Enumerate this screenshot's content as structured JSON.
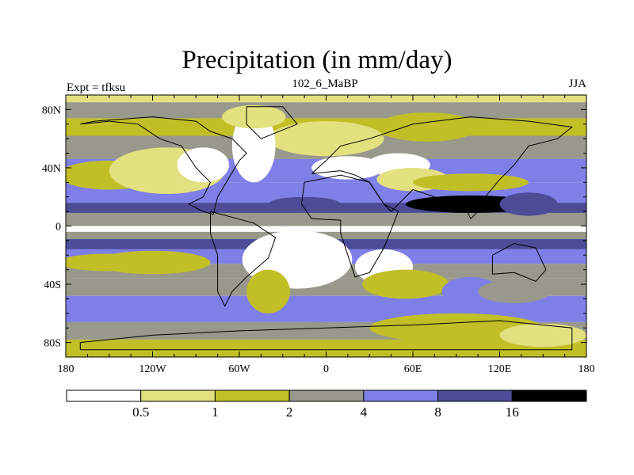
{
  "chart_data": {
    "type": "heatmap",
    "title": "Precipitation (in mm/day)",
    "left_string": "Expt = tfksu",
    "center_string": "102_6_MaBP",
    "right_string": "JJA",
    "x_ticks": [
      {
        "value": -180,
        "label": "180"
      },
      {
        "value": -120,
        "label": "120W"
      },
      {
        "value": -60,
        "label": "60W"
      },
      {
        "value": 0,
        "label": "0"
      },
      {
        "value": 60,
        "label": "60E"
      },
      {
        "value": 120,
        "label": "120E"
      },
      {
        "value": 180,
        "label": "180"
      }
    ],
    "y_ticks": [
      {
        "value": 80,
        "label": "80N"
      },
      {
        "value": 40,
        "label": "40N"
      },
      {
        "value": 0,
        "label": "0"
      },
      {
        "value": -40,
        "label": "40S"
      },
      {
        "value": -80,
        "label": "80S"
      }
    ],
    "xlim": [
      -180,
      180
    ],
    "ylim": [
      -90,
      90
    ],
    "colorbar": {
      "levels": [
        "0.5",
        "1",
        "2",
        "4",
        "8",
        "16"
      ],
      "colors": [
        "#ffffff",
        "#e3e07f",
        "#c1bf26",
        "#98988c",
        "#7f7fe8",
        "#4c4c97",
        "#000000"
      ]
    },
    "bands": [
      {
        "lat": 90,
        "lon": -180,
        "width": 360,
        "lat2": 85,
        "level": 1
      },
      {
        "lat": 85,
        "lon": -180,
        "width": 360,
        "lat2": 74,
        "level": 3
      },
      {
        "lat": 74,
        "lon": -180,
        "width": 360,
        "lat2": 62,
        "level": 2
      },
      {
        "lat": 62,
        "lon": -180,
        "width": 360,
        "lat2": 46,
        "level": 3
      },
      {
        "lat": 46,
        "lon": -180,
        "width": 360,
        "lat2": 30,
        "level": 4
      },
      {
        "lat": 30,
        "lon": -180,
        "width": 360,
        "lat2": 16,
        "level": 4
      },
      {
        "lat": 16,
        "lon": -180,
        "width": 360,
        "lat2": 9,
        "level": 5
      },
      {
        "lat": 9,
        "lon": -180,
        "width": 360,
        "lat2": 0,
        "level": 3
      },
      {
        "lat": 0,
        "lon": -180,
        "width": 360,
        "lat2": -4,
        "level": 0
      },
      {
        "lat": -4,
        "lon": -180,
        "width": 360,
        "lat2": -9,
        "level": 3
      },
      {
        "lat": -9,
        "lon": -180,
        "width": 360,
        "lat2": -16,
        "level": 5
      },
      {
        "lat": -16,
        "lon": -180,
        "width": 360,
        "lat2": -26,
        "level": 4
      },
      {
        "lat": -26,
        "lon": -180,
        "width": 360,
        "lat2": -36,
        "level": 3
      },
      {
        "lat": -36,
        "lon": -180,
        "width": 360,
        "lat2": -48,
        "level": 3
      },
      {
        "lat": -48,
        "lon": -180,
        "width": 360,
        "lat2": -66,
        "level": 4
      },
      {
        "lat": -66,
        "lon": -180,
        "width": 360,
        "lat2": -78,
        "level": 3
      },
      {
        "lat": -78,
        "lon": -180,
        "width": 360,
        "lat2": -90,
        "level": 2
      }
    ],
    "patches": [
      {
        "cx": 0,
        "cy": 60,
        "rx": 40,
        "ry": 12,
        "level": 1
      },
      {
        "cx": 70,
        "cy": 68,
        "rx": 35,
        "ry": 10,
        "level": 2
      },
      {
        "cx": -150,
        "cy": 35,
        "rx": 35,
        "ry": 10,
        "level": 2
      },
      {
        "cx": -110,
        "cy": 38,
        "rx": 40,
        "ry": 16,
        "level": 1
      },
      {
        "cx": -85,
        "cy": 42,
        "rx": 18,
        "ry": 12,
        "level": 0
      },
      {
        "cx": -50,
        "cy": 55,
        "rx": 15,
        "ry": 25,
        "level": 0
      },
      {
        "cx": -50,
        "cy": 75,
        "rx": 22,
        "ry": 8,
        "level": 1
      },
      {
        "cx": 15,
        "cy": 40,
        "rx": 25,
        "ry": 8,
        "level": 0
      },
      {
        "cx": 50,
        "cy": 42,
        "rx": 22,
        "ry": 8,
        "level": 0
      },
      {
        "cx": 60,
        "cy": 32,
        "rx": 25,
        "ry": 8,
        "level": 1
      },
      {
        "cx": 100,
        "cy": 30,
        "rx": 40,
        "ry": 6,
        "level": 2
      },
      {
        "cx": 100,
        "cy": 15,
        "rx": 45,
        "ry": 6,
        "level": 6
      },
      {
        "cx": 140,
        "cy": 15,
        "rx": 20,
        "ry": 8,
        "level": 5
      },
      {
        "cx": -15,
        "cy": 15,
        "rx": 25,
        "ry": 5,
        "level": 5
      },
      {
        "cx": -150,
        "cy": -25,
        "rx": 35,
        "ry": 6,
        "level": 2
      },
      {
        "cx": -20,
        "cy": -23,
        "rx": 38,
        "ry": 20,
        "level": 0
      },
      {
        "cx": 40,
        "cy": -28,
        "rx": 20,
        "ry": 12,
        "level": 0
      },
      {
        "cx": -40,
        "cy": -45,
        "rx": 15,
        "ry": 15,
        "level": 2
      },
      {
        "cx": 55,
        "cy": -40,
        "rx": 30,
        "ry": 10,
        "level": 2
      },
      {
        "cx": 100,
        "cy": -45,
        "rx": 20,
        "ry": 10,
        "level": 4
      },
      {
        "cx": 130,
        "cy": -45,
        "rx": 25,
        "ry": 8,
        "level": 3
      },
      {
        "cx": 90,
        "cy": -70,
        "rx": 60,
        "ry": 10,
        "level": 2
      },
      {
        "cx": -120,
        "cy": -25,
        "rx": 40,
        "ry": 8,
        "level": 2
      },
      {
        "cx": 150,
        "cy": -75,
        "rx": 30,
        "ry": 8,
        "level": 1
      }
    ],
    "coastline": [
      [
        [
          -170,
          70
        ],
        [
          -150,
          72
        ],
        [
          -130,
          70
        ],
        [
          -115,
          60
        ],
        [
          -100,
          55
        ],
        [
          -90,
          40
        ],
        [
          -80,
          30
        ],
        [
          -85,
          20
        ],
        [
          -95,
          15
        ],
        [
          -85,
          10
        ],
        [
          -78,
          8
        ],
        [
          -75,
          20
        ],
        [
          -60,
          45
        ],
        [
          -55,
          50
        ],
        [
          -65,
          60
        ],
        [
          -80,
          65
        ],
        [
          -90,
          72
        ],
        [
          -120,
          75
        ],
        [
          -160,
          72
        ],
        [
          -170,
          70
        ]
      ],
      [
        [
          -55,
          82
        ],
        [
          -30,
          82
        ],
        [
          -20,
          70
        ],
        [
          -45,
          60
        ],
        [
          -55,
          70
        ],
        [
          -55,
          82
        ]
      ],
      [
        [
          -80,
          10
        ],
        [
          -50,
          2
        ],
        [
          -35,
          -8
        ],
        [
          -40,
          -22
        ],
        [
          -55,
          -35
        ],
        [
          -65,
          -45
        ],
        [
          -70,
          -55
        ],
        [
          -75,
          -45
        ],
        [
          -75,
          -20
        ],
        [
          -80,
          -5
        ],
        [
          -80,
          10
        ]
      ],
      [
        [
          -10,
          36
        ],
        [
          0,
          45
        ],
        [
          10,
          55
        ],
        [
          30,
          60
        ],
        [
          60,
          70
        ],
        [
          100,
          75
        ],
        [
          140,
          72
        ],
        [
          170,
          68
        ],
        [
          160,
          60
        ],
        [
          140,
          55
        ],
        [
          130,
          42
        ],
        [
          120,
          32
        ],
        [
          110,
          20
        ],
        [
          105,
          10
        ],
        [
          100,
          5
        ],
        [
          95,
          15
        ],
        [
          80,
          10
        ],
        [
          75,
          20
        ],
        [
          60,
          25
        ],
        [
          50,
          15
        ],
        [
          45,
          10
        ],
        [
          40,
          15
        ],
        [
          30,
          30
        ],
        [
          20,
          35
        ],
        [
          10,
          38
        ],
        [
          -10,
          36
        ]
      ],
      [
        [
          -15,
          30
        ],
        [
          -17,
          15
        ],
        [
          -10,
          5
        ],
        [
          10,
          4
        ],
        [
          10,
          -5
        ],
        [
          15,
          -20
        ],
        [
          20,
          -35
        ],
        [
          30,
          -32
        ],
        [
          40,
          -15
        ],
        [
          50,
          10
        ],
        [
          40,
          15
        ],
        [
          30,
          30
        ],
        [
          10,
          35
        ],
        [
          -15,
          30
        ]
      ],
      [
        [
          115,
          -20
        ],
        [
          130,
          -12
        ],
        [
          145,
          -15
        ],
        [
          152,
          -30
        ],
        [
          145,
          -38
        ],
        [
          130,
          -32
        ],
        [
          115,
          -33
        ],
        [
          115,
          -20
        ]
      ],
      [
        [
          -170,
          -85
        ],
        [
          170,
          -85
        ],
        [
          170,
          -70
        ],
        [
          120,
          -65
        ],
        [
          60,
          -68
        ],
        [
          0,
          -70
        ],
        [
          -60,
          -72
        ],
        [
          -120,
          -75
        ],
        [
          -170,
          -80
        ],
        [
          -170,
          -85
        ]
      ]
    ]
  }
}
